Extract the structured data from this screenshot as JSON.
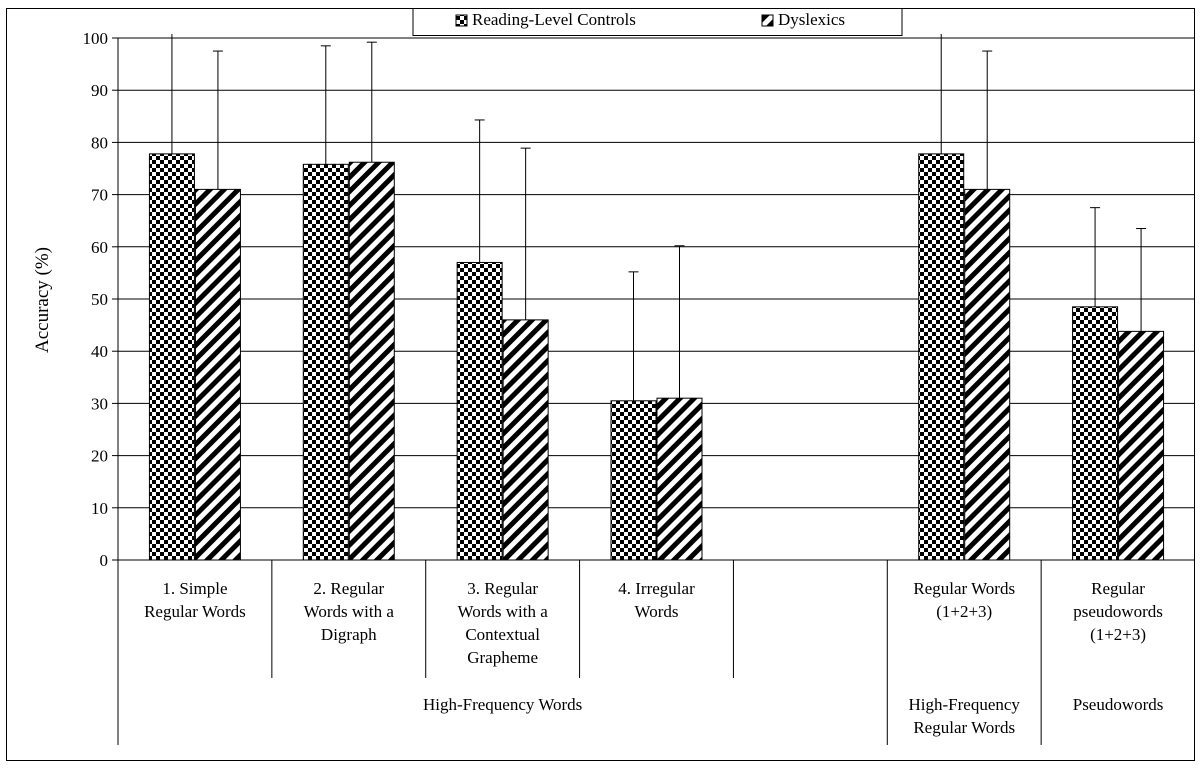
{
  "chart_data": {
    "type": "bar",
    "ylabel": "Accuracy (%)",
    "ylim": [
      0,
      100
    ],
    "yticks": [
      0,
      10,
      20,
      30,
      40,
      50,
      60,
      70,
      80,
      90,
      100
    ],
    "grid": true,
    "legend_position": "top",
    "categories": [
      [
        "1. Simple",
        "Regular Words"
      ],
      [
        "2. Regular",
        "Words with a",
        "Digraph"
      ],
      [
        "3. Regular",
        "Words with a",
        "Contextual",
        "Grapheme"
      ],
      [
        "4. Irregular",
        "Words"
      ],
      [],
      [
        "Regular Words",
        "(1+2+3)"
      ],
      [
        "Regular",
        "pseudowords",
        "(1+2+3)"
      ]
    ],
    "groups": [
      {
        "label": "High-Frequency Words",
        "span": [
          0,
          4
        ]
      },
      {
        "label": [
          "High-Frequency",
          "Regular Words"
        ],
        "span": [
          5,
          5
        ]
      },
      {
        "label": "Pseudowords",
        "span": [
          6,
          6
        ]
      }
    ],
    "series": [
      {
        "name": "Reading-Level Controls",
        "pattern": "checker",
        "values": [
          77.8,
          75.8,
          57.0,
          30.5,
          null,
          77.8,
          48.5
        ],
        "error_upper": [
          101,
          98.5,
          84.3,
          55.2,
          null,
          101,
          67.5
        ]
      },
      {
        "name": "Dyslexics",
        "pattern": "diagonal",
        "values": [
          71.0,
          76.2,
          46.0,
          31.0,
          null,
          71.0,
          43.8
        ],
        "error_upper": [
          97.5,
          99.2,
          78.9,
          60.2,
          null,
          97.5,
          63.5
        ]
      }
    ]
  }
}
